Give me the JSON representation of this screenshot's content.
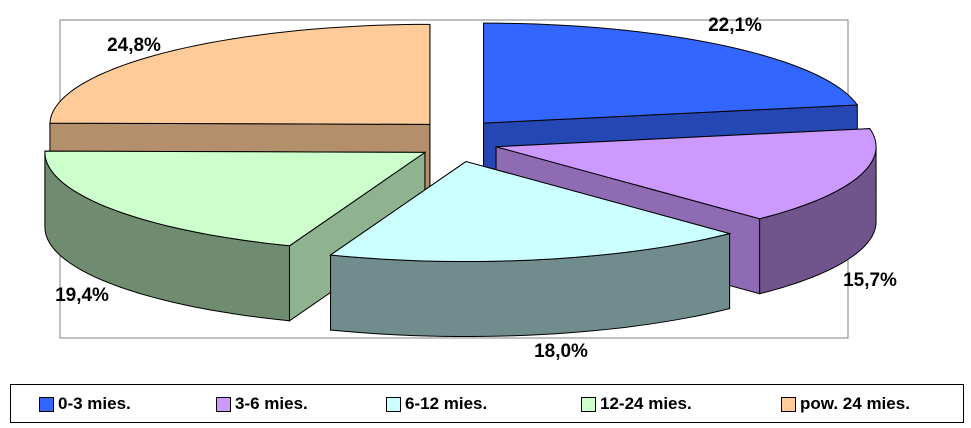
{
  "chart_data": {
    "type": "pie",
    "categories": [
      "0-3 mies.",
      "3-6 mies.",
      "6-12 mies.",
      "12-24 mies.",
      "pow. 24 mies."
    ],
    "values": [
      22.1,
      15.7,
      18.0,
      19.4,
      24.8
    ],
    "data_labels": [
      "22,1%",
      "15,7%",
      "18,0%",
      "19,4%",
      "24,8%"
    ],
    "colors": [
      "#3366ff",
      "#cc99ff",
      "#ccffff",
      "#ccffcc",
      "#ffcc99"
    ],
    "legend_position": "bottom",
    "style": "3d-exploded"
  }
}
